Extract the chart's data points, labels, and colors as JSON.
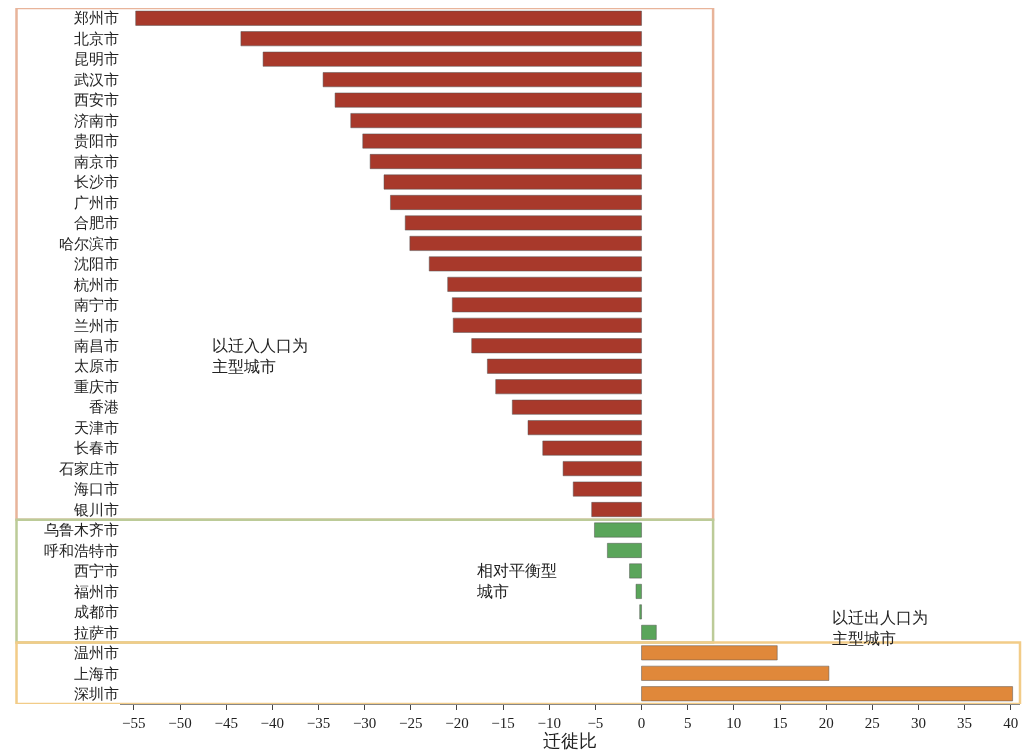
{
  "chart_data": {
    "type": "bar",
    "orientation": "horizontal",
    "xlabel": "迁徙比",
    "categories": [
      "郑州市",
      "北京市",
      "昆明市",
      "武汉市",
      "西安市",
      "济南市",
      "贵阳市",
      "南京市",
      "长沙市",
      "广州市",
      "合肥市",
      "哈尔滨市",
      "沈阳市",
      "杭州市",
      "南宁市",
      "兰州市",
      "南昌市",
      "太原市",
      "重庆市",
      "香港",
      "天津市",
      "长春市",
      "石家庄市",
      "海口市",
      "银川市",
      "乌鲁木齐市",
      "呼和浩特市",
      "西宁市",
      "福州市",
      "成都市",
      "拉萨市",
      "温州市",
      "上海市",
      "深圳市"
    ],
    "values": [
      -54.8,
      -43.4,
      -41.0,
      -34.5,
      -33.2,
      -31.5,
      -30.2,
      -29.4,
      -27.9,
      -27.2,
      -25.6,
      -25.1,
      -23.0,
      -21.0,
      -20.5,
      -20.4,
      -18.4,
      -16.7,
      -15.8,
      -14.0,
      -12.3,
      -10.7,
      -8.5,
      -7.4,
      -5.4,
      -5.1,
      -3.7,
      -1.3,
      -0.6,
      -0.2,
      1.6,
      14.7,
      20.3,
      40.2
    ],
    "colors": [
      "#a8392b",
      "#a8392b",
      "#a8392b",
      "#a8392b",
      "#a8392b",
      "#a8392b",
      "#a8392b",
      "#a8392b",
      "#a8392b",
      "#a8392b",
      "#a8392b",
      "#a8392b",
      "#a8392b",
      "#a8392b",
      "#a8392b",
      "#a8392b",
      "#a8392b",
      "#a8392b",
      "#a8392b",
      "#a8392b",
      "#a8392b",
      "#a8392b",
      "#a8392b",
      "#a8392b",
      "#a8392b",
      "#5aa55a",
      "#5aa55a",
      "#5aa55a",
      "#5aa55a",
      "#5aa55a",
      "#5aa55a",
      "#e0883a",
      "#e0883a",
      "#e0883a"
    ],
    "xlim": [
      -56.5,
      41
    ],
    "xticks": [
      -55,
      -50,
      -45,
      -40,
      -35,
      -30,
      -25,
      -20,
      -15,
      -10,
      -5,
      0,
      5,
      10,
      15,
      20,
      25,
      30,
      35,
      40
    ],
    "annotations": [
      "以迁入人口为主型城市",
      "相对平衡型城市",
      "以迁出人口为主型城市"
    ],
    "grid": false,
    "legend": false
  }
}
